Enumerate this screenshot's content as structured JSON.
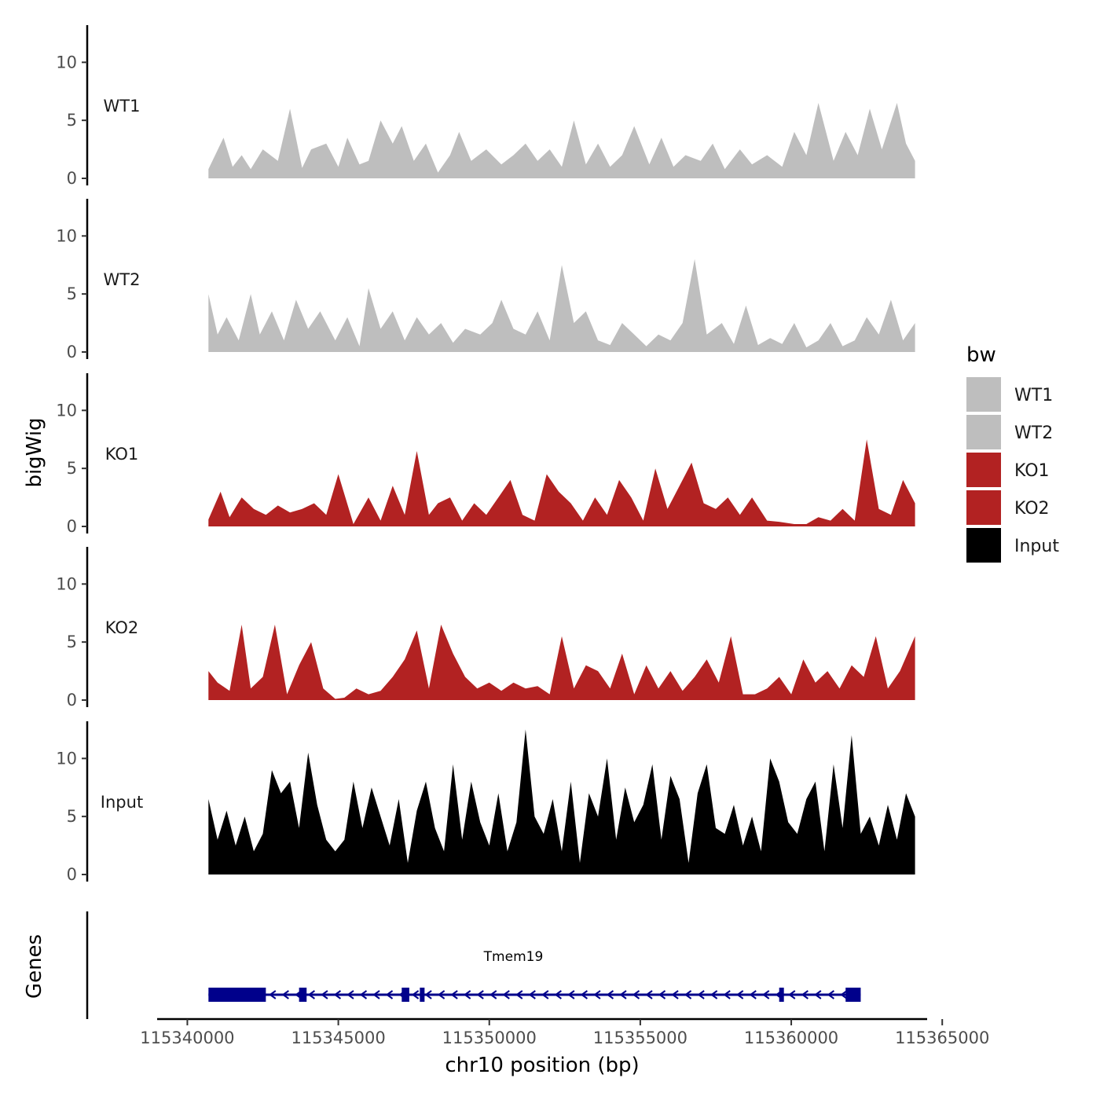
{
  "chart_data": {
    "type": "area",
    "title": "",
    "xlabel": "chr10 position (bp)",
    "ylabel": "bigWig",
    "gene_panel_label": "Genes",
    "xlim": [
      115339000,
      115364500
    ],
    "x_ticks": [
      115340000,
      115345000,
      115350000,
      115355000,
      115360000,
      115365000
    ],
    "x_tick_labels": [
      "115340000",
      "115345000",
      "115350000",
      "115355000",
      "115360000",
      "115365000"
    ],
    "ylim": [
      0,
      13
    ],
    "y_ticks": [
      0,
      5,
      10
    ],
    "y_tick_labels": [
      "0",
      "5",
      "10"
    ],
    "legend": {
      "title": "bw",
      "position": "right",
      "entries": [
        {
          "label": "WT1",
          "color": "#bebebe"
        },
        {
          "label": "WT2",
          "color": "#bebebe"
        },
        {
          "label": "KO1",
          "color": "#b22222"
        },
        {
          "label": "KO2",
          "color": "#b22222"
        },
        {
          "label": "Input",
          "color": "#000000"
        }
      ]
    },
    "series": [
      {
        "name": "WT1",
        "color": "#bebebe",
        "x": [
          115340700,
          115341200,
          115341500,
          115341800,
          115342100,
          115342500,
          115343000,
          115343400,
          115343800,
          115344100,
          115344600,
          115345000,
          115345300,
          115345700,
          115346000,
          115346400,
          115346800,
          115347100,
          115347500,
          115347900,
          115348300,
          115348700,
          115349000,
          115349400,
          115349900,
          115350400,
          115350800,
          115351200,
          115351600,
          115352000,
          115352400,
          115352800,
          115353200,
          115353600,
          115354000,
          115354400,
          115354800,
          115355300,
          115355700,
          115356100,
          115356500,
          115357000,
          115357400,
          115357800,
          115358300,
          115358700,
          115359200,
          115359700,
          115360100,
          115360500,
          115360900,
          115361400,
          115361800,
          115362200,
          115362600,
          115363000,
          115363500,
          115363800,
          115364100
        ],
        "values": [
          0.8,
          3.5,
          1.0,
          2.0,
          0.8,
          2.5,
          1.5,
          6.0,
          0.9,
          2.5,
          3.0,
          1.0,
          3.5,
          1.2,
          1.5,
          5.0,
          3.0,
          4.5,
          1.5,
          3.0,
          0.5,
          2.0,
          4.0,
          1.5,
          2.5,
          1.2,
          2.0,
          3.0,
          1.5,
          2.5,
          1.0,
          5.0,
          1.2,
          3.0,
          1.0,
          2.0,
          4.5,
          1.2,
          3.5,
          1.0,
          2.0,
          1.5,
          3.0,
          0.8,
          2.5,
          1.2,
          2.0,
          1.0,
          4.0,
          2.0,
          6.5,
          1.5,
          4.0,
          2.0,
          6.0,
          2.5,
          6.5,
          3.0,
          1.5
        ]
      },
      {
        "name": "WT2",
        "color": "#bebebe",
        "x": [
          115340700,
          115341000,
          115341300,
          115341700,
          115342100,
          115342400,
          115342800,
          115343200,
          115343600,
          115344000,
          115344400,
          115344900,
          115345300,
          115345700,
          115346000,
          115346400,
          115346800,
          115347200,
          115347600,
          115348000,
          115348400,
          115348800,
          115349200,
          115349700,
          115350100,
          115350400,
          115350800,
          115351200,
          115351600,
          115352000,
          115352400,
          115352800,
          115353200,
          115353600,
          115354000,
          115354400,
          115354800,
          115355200,
          115355600,
          115356000,
          115356400,
          115356800,
          115357200,
          115357700,
          115358100,
          115358500,
          115358900,
          115359300,
          115359700,
          115360100,
          115360500,
          115360900,
          115361300,
          115361700,
          115362100,
          115362500,
          115362900,
          115363300,
          115363700,
          115364100
        ],
        "values": [
          5.0,
          1.5,
          3.0,
          1.0,
          5.0,
          1.5,
          3.5,
          1.0,
          4.5,
          2.0,
          3.5,
          1.0,
          3.0,
          0.5,
          5.5,
          2.0,
          3.5,
          1.0,
          3.0,
          1.5,
          2.5,
          0.8,
          2.0,
          1.5,
          2.5,
          4.5,
          2.0,
          1.5,
          3.5,
          1.0,
          7.5,
          2.5,
          3.5,
          1.0,
          0.6,
          2.5,
          1.5,
          0.5,
          1.5,
          1.0,
          2.5,
          8.0,
          1.5,
          2.5,
          0.7,
          4.0,
          0.6,
          1.2,
          0.7,
          2.5,
          0.4,
          1.0,
          2.5,
          0.5,
          1.0,
          3.0,
          1.5,
          4.5,
          1.0,
          2.5
        ]
      },
      {
        "name": "KO1",
        "color": "#b22222",
        "x": [
          115340700,
          115341100,
          115341400,
          115341800,
          115342200,
          115342600,
          115343000,
          115343400,
          115343800,
          115344200,
          115344600,
          115345000,
          115345500,
          115346000,
          115346400,
          115346800,
          115347200,
          115347600,
          115348000,
          115348300,
          115348700,
          115349100,
          115349500,
          115349900,
          115350300,
          115350700,
          115351100,
          115351500,
          115351900,
          115352300,
          115352700,
          115353100,
          115353500,
          115353900,
          115354300,
          115354700,
          115355100,
          115355500,
          115355900,
          115356300,
          115356700,
          115357100,
          115357500,
          115357900,
          115358300,
          115358700,
          115359200,
          115359600,
          115360100,
          115360500,
          115360900,
          115361300,
          115361700,
          115362100,
          115362500,
          115362900,
          115363300,
          115363700,
          115364100
        ],
        "values": [
          0.6,
          3.0,
          0.8,
          2.5,
          1.5,
          1.0,
          1.8,
          1.2,
          1.5,
          2.0,
          1.0,
          4.5,
          0.2,
          2.5,
          0.5,
          3.5,
          1.0,
          6.5,
          1.0,
          2.0,
          2.5,
          0.5,
          2.0,
          1.0,
          2.5,
          4.0,
          1.0,
          0.5,
          4.5,
          3.0,
          2.0,
          0.5,
          2.5,
          1.0,
          4.0,
          2.5,
          0.5,
          5.0,
          1.5,
          3.5,
          5.5,
          2.0,
          1.5,
          2.5,
          1.0,
          2.5,
          0.5,
          0.4,
          0.2,
          0.2,
          0.8,
          0.5,
          1.5,
          0.5,
          7.5,
          1.5,
          1.0,
          4.0,
          2.0
        ]
      },
      {
        "name": "KO2",
        "color": "#b22222",
        "x": [
          115340700,
          115341000,
          115341400,
          115341800,
          115342100,
          115342500,
          115342900,
          115343300,
          115343700,
          115344100,
          115344500,
          115344900,
          115345200,
          115345600,
          115346000,
          115346400,
          115346800,
          115347200,
          115347600,
          115348000,
          115348400,
          115348800,
          115349200,
          115349600,
          115350000,
          115350400,
          115350800,
          115351200,
          115351600,
          115352000,
          115352400,
          115352800,
          115353200,
          115353600,
          115354000,
          115354400,
          115354800,
          115355200,
          115355600,
          115356000,
          115356400,
          115356800,
          115357200,
          115357600,
          115358000,
          115358400,
          115358800,
          115359200,
          115359600,
          115360000,
          115360400,
          115360800,
          115361200,
          115361600,
          115362000,
          115362400,
          115362800,
          115363200,
          115363600,
          115364100
        ],
        "values": [
          2.5,
          1.5,
          0.8,
          6.5,
          1.0,
          2.0,
          6.5,
          0.5,
          3.0,
          5.0,
          1.0,
          0.1,
          0.2,
          1.0,
          0.5,
          0.8,
          2.0,
          3.5,
          6.0,
          1.0,
          6.5,
          4.0,
          2.0,
          1.0,
          1.5,
          0.8,
          1.5,
          1.0,
          1.2,
          0.5,
          5.5,
          1.0,
          3.0,
          2.5,
          1.0,
          4.0,
          0.5,
          3.0,
          1.0,
          2.5,
          0.8,
          2.0,
          3.5,
          1.5,
          5.5,
          0.5,
          0.5,
          1.0,
          2.0,
          0.5,
          3.5,
          1.5,
          2.5,
          1.0,
          3.0,
          2.0,
          5.5,
          1.0,
          2.5,
          5.5
        ]
      },
      {
        "name": "Input",
        "color": "#000000",
        "x": [
          115340700,
          115341000,
          115341300,
          115341600,
          115341900,
          115342200,
          115342500,
          115342800,
          115343100,
          115343400,
          115343700,
          115344000,
          115344300,
          115344600,
          115344900,
          115345200,
          115345500,
          115345800,
          115346100,
          115346400,
          115346700,
          115347000,
          115347300,
          115347600,
          115347900,
          115348200,
          115348500,
          115348800,
          115349100,
          115349400,
          115349700,
          115350000,
          115350300,
          115350600,
          115350900,
          115351200,
          115351500,
          115351800,
          115352100,
          115352400,
          115352700,
          115353000,
          115353300,
          115353600,
          115353900,
          115354200,
          115354500,
          115354800,
          115355100,
          115355400,
          115355700,
          115356000,
          115356300,
          115356600,
          115356900,
          115357200,
          115357500,
          115357800,
          115358100,
          115358400,
          115358700,
          115359000,
          115359300,
          115359600,
          115359900,
          115360200,
          115360500,
          115360800,
          115361100,
          115361400,
          115361700,
          115362000,
          115362300,
          115362600,
          115362900,
          115363200,
          115363500,
          115363800,
          115364100
        ],
        "values": [
          6.5,
          3.0,
          5.5,
          2.5,
          5.0,
          2.0,
          3.5,
          9.0,
          7.0,
          8.0,
          4.0,
          10.5,
          6.0,
          3.0,
          2.0,
          3.0,
          8.0,
          4.0,
          7.5,
          5.0,
          2.5,
          6.5,
          1.0,
          5.5,
          8.0,
          4.0,
          2.0,
          9.5,
          3.0,
          8.0,
          4.5,
          2.5,
          7.0,
          2.0,
          4.5,
          12.5,
          5.0,
          3.5,
          6.5,
          2.0,
          8.0,
          1.0,
          7.0,
          5.0,
          10.0,
          3.0,
          7.5,
          4.5,
          6.0,
          9.5,
          3.0,
          8.5,
          6.5,
          1.0,
          7.0,
          9.5,
          4.0,
          3.5,
          6.0,
          2.5,
          5.0,
          2.0,
          10.0,
          8.0,
          4.5,
          3.5,
          6.5,
          8.0,
          2.0,
          9.5,
          4.0,
          12.0,
          3.5,
          5.0,
          2.5,
          6.0,
          3.0,
          7.0,
          5.0
        ]
      }
    ],
    "gene": {
      "name": "Tmem19",
      "strand": "-",
      "color": "#00008b",
      "start": 115340700,
      "end": 115362300,
      "exons": [
        {
          "start": 115340700,
          "end": 115342600
        },
        {
          "start": 115343700,
          "end": 115343950
        },
        {
          "start": 115347100,
          "end": 115347350
        },
        {
          "start": 115347700,
          "end": 115347850
        },
        {
          "start": 115359600,
          "end": 115359750
        },
        {
          "start": 115361800,
          "end": 115362300
        }
      ]
    }
  }
}
